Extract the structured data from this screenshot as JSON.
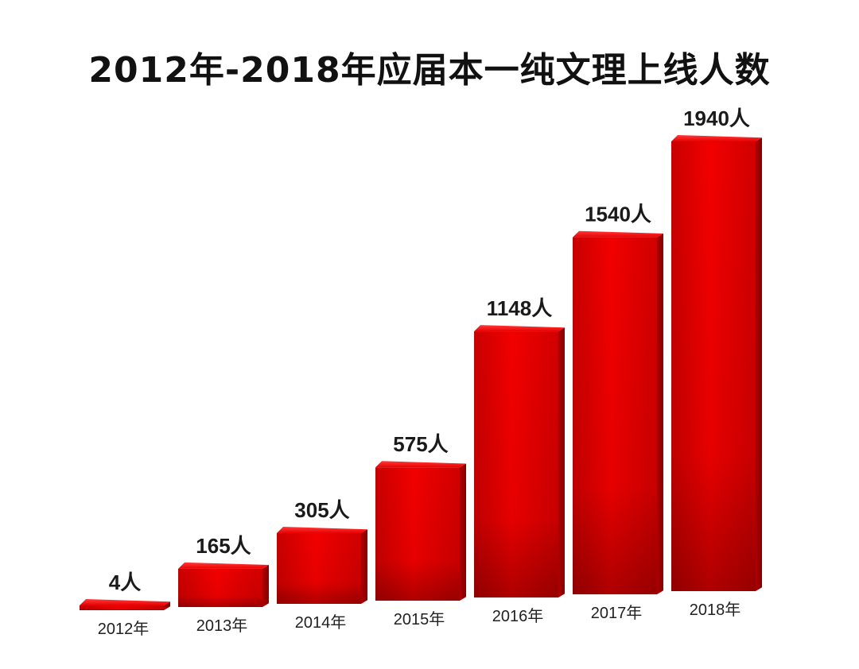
{
  "title": "2012年-2018年应届本一纯文理上线人数",
  "chart_data": {
    "type": "bar",
    "title": "2012年-2018年应届本一纯文理上线人数",
    "categories": [
      "2012年",
      "2013年",
      "2014年",
      "2015年",
      "2016年",
      "2017年",
      "2018年"
    ],
    "values": [
      4,
      165,
      305,
      575,
      1148,
      1540,
      1940
    ],
    "value_labels": [
      "4人",
      "165人",
      "305人",
      "575人",
      "1148人",
      "1540人",
      "1940人"
    ],
    "xlabel": "",
    "ylabel": "",
    "ylim": [
      0,
      1940
    ],
    "grid": false,
    "legend": "none",
    "bar_color": "#e60000"
  }
}
